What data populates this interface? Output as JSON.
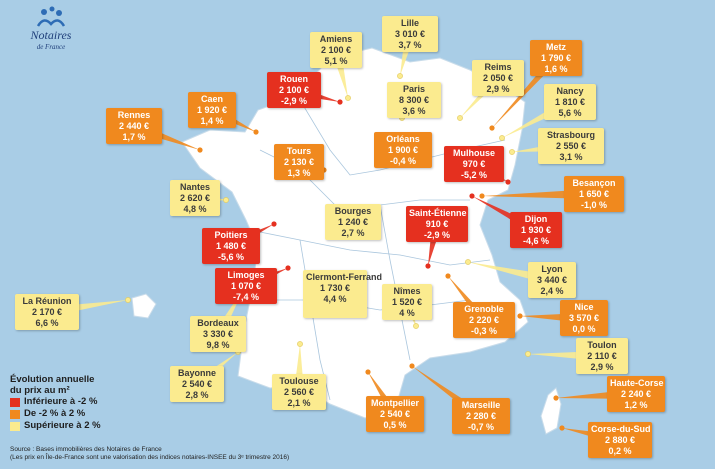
{
  "logo": {
    "name": "Notaires",
    "sub": "de France"
  },
  "colors": {
    "red": "#e5301f",
    "orange": "#f0891e",
    "yellow": "#fbeb8f",
    "sea": "#a9cde6",
    "land": "#ffffff"
  },
  "legend": {
    "title_1": "Évolution annuelle",
    "title_2": "du prix au m²",
    "items": [
      {
        "label": "Inférieure à -2 %",
        "color": "#e5301f"
      },
      {
        "label": "De -2 % à 2 %",
        "color": "#f0891e"
      },
      {
        "label": "Supérieure à 2 %",
        "color": "#fbeb8f"
      }
    ]
  },
  "source": {
    "line_1": "Source : Bases immobilières des Notaires de France",
    "line_2": "(Les prix en Île-de-France sont une valorisation des indices notaires-INSEE du 3ᵉ trimestre 2016)"
  },
  "cities": [
    {
      "name": "Lille",
      "price": "3 010 €",
      "change": "3,7 %",
      "category": "yellow"
    },
    {
      "name": "Amiens",
      "price": "2 100 €",
      "change": "5,1 %",
      "category": "yellow"
    },
    {
      "name": "Metz",
      "price": "1 790 €",
      "change": "1,6 %",
      "category": "orange"
    },
    {
      "name": "Rouen",
      "price": "2 100 €",
      "change": "-2,9 %",
      "category": "red"
    },
    {
      "name": "Reims",
      "price": "2 050 €",
      "change": "2,9 %",
      "category": "yellow"
    },
    {
      "name": "Caen",
      "price": "1 920 €",
      "change": "1,4 %",
      "category": "orange"
    },
    {
      "name": "Paris",
      "price": "8 300 €",
      "change": "3,6 %",
      "category": "yellow"
    },
    {
      "name": "Nancy",
      "price": "1 810 €",
      "change": "5,6 %",
      "category": "yellow"
    },
    {
      "name": "Rennes",
      "price": "2 440 €",
      "change": "1,7 %",
      "category": "orange"
    },
    {
      "name": "Strasbourg",
      "price": "2 550 €",
      "change": "3,1 %",
      "category": "yellow"
    },
    {
      "name": "Orléans",
      "price": "1 900 €",
      "change": "-0,4 %",
      "category": "orange"
    },
    {
      "name": "Tours",
      "price": "2 130 €",
      "change": "1,3 %",
      "category": "orange"
    },
    {
      "name": "Mulhouse",
      "price": "970 €",
      "change": "-5,2 %",
      "category": "red"
    },
    {
      "name": "Nantes",
      "price": "2 620 €",
      "change": "4,8 %",
      "category": "yellow"
    },
    {
      "name": "Besançon",
      "price": "1 650 €",
      "change": "-1,0 %",
      "category": "orange"
    },
    {
      "name": "Bourges",
      "price": "1 240 €",
      "change": "2,7 %",
      "category": "yellow"
    },
    {
      "name": "Saint-Étienne",
      "price": "910 €",
      "change": "-2,9 %",
      "category": "red"
    },
    {
      "name": "Dijon",
      "price": "1 930 €",
      "change": "-4,6 %",
      "category": "red"
    },
    {
      "name": "Poitiers",
      "price": "1 480 €",
      "change": "-5,6 %",
      "category": "red"
    },
    {
      "name": "Lyon",
      "price": "3 440 €",
      "change": "2,4 %",
      "category": "yellow"
    },
    {
      "name": "Limoges",
      "price": "1 070 €",
      "change": "-7,4 %",
      "category": "red"
    },
    {
      "name": "Clermont-Ferrand",
      "price": "1 730 €",
      "change": "4,4 %",
      "category": "yellow"
    },
    {
      "name": "Nîmes",
      "price": "1 520 €",
      "change": "4 %",
      "category": "yellow"
    },
    {
      "name": "La Réunion",
      "price": "2 170 €",
      "change": "6,6 %",
      "category": "yellow"
    },
    {
      "name": "Nice",
      "price": "3 570 €",
      "change": "0,0 %",
      "category": "orange"
    },
    {
      "name": "Grenoble",
      "price": "2 220 €",
      "change": "-0,3 %",
      "category": "orange"
    },
    {
      "name": "Bordeaux",
      "price": "3 330 €",
      "change": "9,8 %",
      "category": "yellow"
    },
    {
      "name": "Toulon",
      "price": "2 110 €",
      "change": "2,9 %",
      "category": "yellow"
    },
    {
      "name": "Bayonne",
      "price": "2 540 €",
      "change": "2,8 %",
      "category": "yellow"
    },
    {
      "name": "Toulouse",
      "price": "2 560 €",
      "change": "2,1 %",
      "category": "yellow"
    },
    {
      "name": "Haute-Corse",
      "price": "2 240 €",
      "change": "1,2 %",
      "category": "orange"
    },
    {
      "name": "Montpellier",
      "price": "2 540 €",
      "change": "0,5 %",
      "category": "orange"
    },
    {
      "name": "Marseille",
      "price": "2 280 €",
      "change": "-0,7 %",
      "category": "orange"
    },
    {
      "name": "Corse-du-Sud",
      "price": "2 880 €",
      "change": "0,2 %",
      "category": "orange"
    }
  ]
}
